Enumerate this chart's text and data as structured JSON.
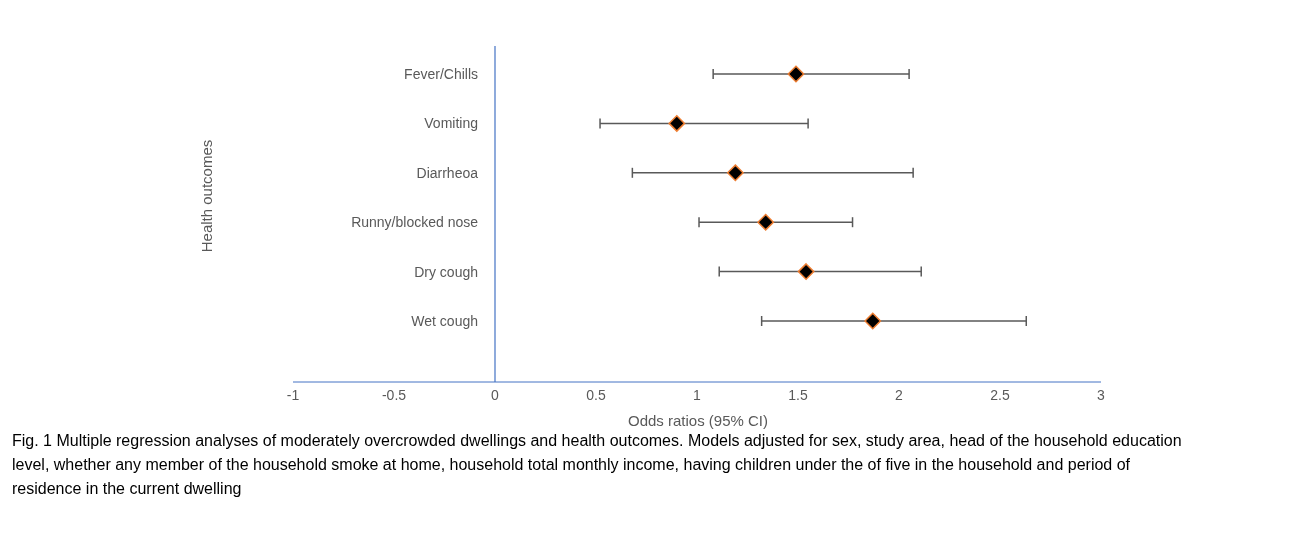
{
  "chart_data": {
    "type": "scatter",
    "orientation": "horizontal",
    "marker": "diamond",
    "grid": false,
    "ylabel": "Health outcomes",
    "xlabel": "Odds ratios (95% CI)",
    "categories": [
      "Fever/Chills",
      "Vomiting",
      "Diarrheoa",
      "Runny/blocked nose",
      "Dry cough",
      "Wet cough"
    ],
    "xlim": [
      -1,
      3
    ],
    "xticks": [
      -1,
      -0.5,
      0,
      0.5,
      1,
      1.5,
      2,
      2.5,
      3
    ],
    "series": [
      {
        "color": "#000000",
        "values": [
          1.49,
          0.9,
          1.19,
          1.34,
          1.54,
          1.87
        ],
        "errors": [
          [
            1.08,
            2.05
          ],
          [
            0.52,
            1.55
          ],
          [
            0.68,
            2.07
          ],
          [
            1.01,
            1.77
          ],
          [
            1.11,
            2.11
          ],
          [
            1.32,
            2.63
          ]
        ]
      }
    ],
    "annotations": [
      "Fig. 1 Multiple regression analyses of moderately overcrowded dwellings and health outcomes. Models adjusted for sex, study area, head of the household education level, whether any member of the household smoke at home, household total monthly income, having children under the of five in the household and period of residence in the current dwelling"
    ]
  }
}
